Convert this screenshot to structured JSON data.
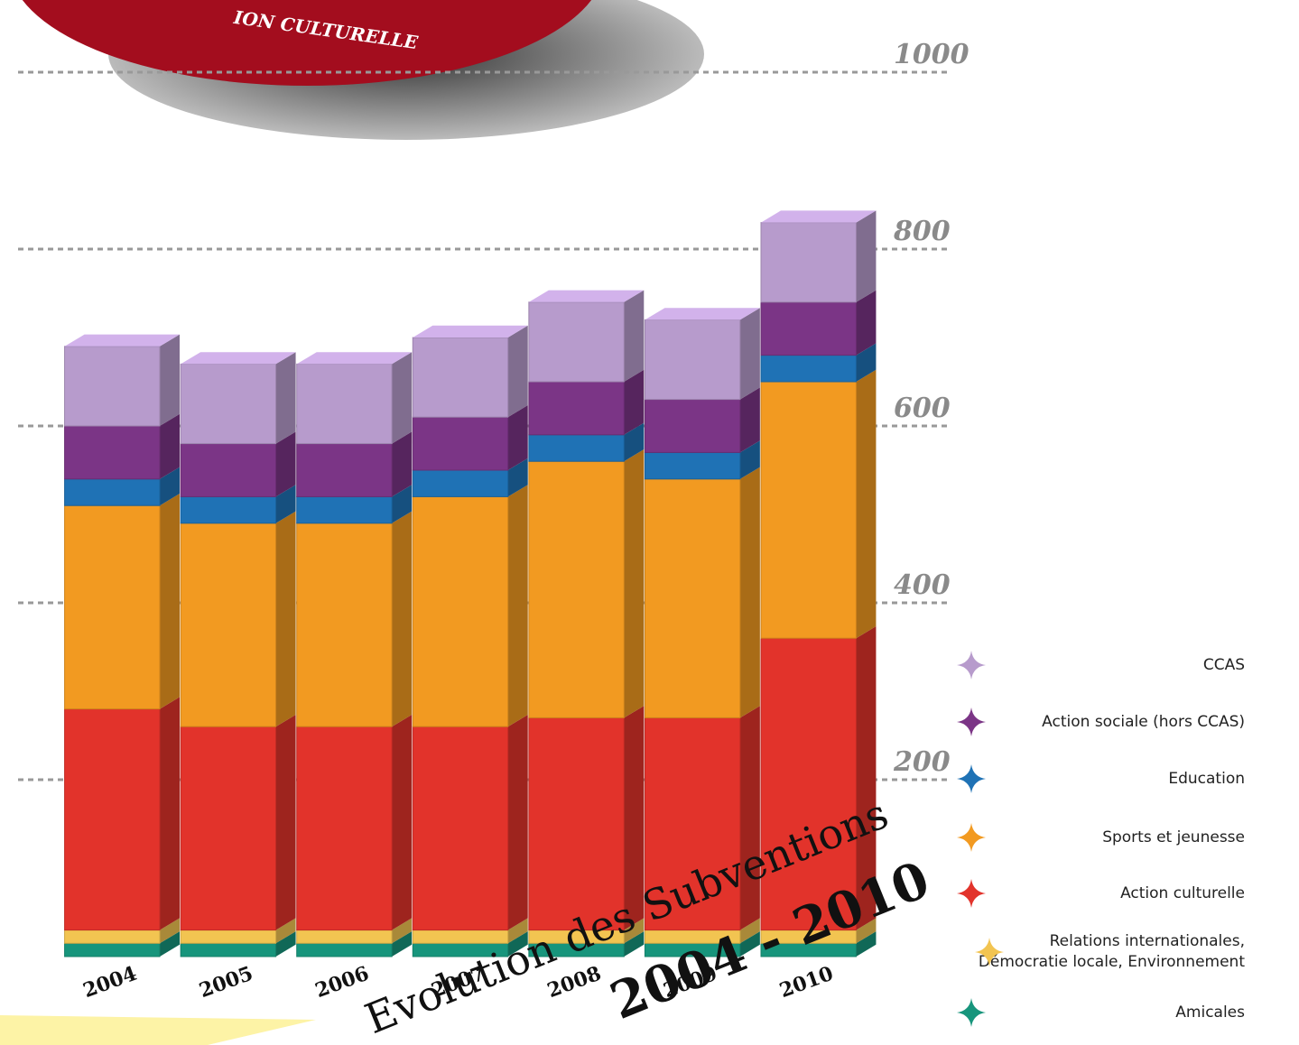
{
  "chart_data": {
    "type": "bar",
    "stacked": true,
    "title": "Evolution des Subventions",
    "subtitle": "2004 - 2010",
    "annotations": [
      "ION CULTURELLE"
    ],
    "categories": [
      "2004",
      "2005",
      "2006",
      "2007",
      "2008",
      "2009",
      "2010"
    ],
    "series": [
      {
        "name": "Amicales",
        "color": "#17957c",
        "values": [
          15,
          15,
          15,
          15,
          15,
          15,
          15
        ]
      },
      {
        "name": "Relations internationales, Démocratie locale, Environnement",
        "color": "#f2c451",
        "values": [
          15,
          15,
          15,
          15,
          15,
          15,
          15
        ]
      },
      {
        "name": "Action culturelle",
        "color": "#e2332b",
        "values": [
          250,
          230,
          230,
          230,
          240,
          240,
          330
        ]
      },
      {
        "name": "Sports et jeunesse",
        "color": "#f29a21",
        "values": [
          230,
          230,
          230,
          260,
          290,
          270,
          290
        ]
      },
      {
        "name": "Education",
        "color": "#1f72b5",
        "values": [
          30,
          30,
          30,
          30,
          30,
          30,
          30
        ]
      },
      {
        "name": "Action sociale (hors CCAS)",
        "color": "#7b3586",
        "values": [
          60,
          60,
          60,
          60,
          60,
          60,
          60
        ]
      },
      {
        "name": "CCAS",
        "color": "#b79bcc",
        "values": [
          90,
          90,
          90,
          90,
          90,
          90,
          90
        ]
      }
    ],
    "ylim": [
      0,
      1000
    ],
    "yticks": [
      200,
      400,
      600,
      800,
      1000
    ],
    "grid": true,
    "legend": "bottom-right"
  }
}
